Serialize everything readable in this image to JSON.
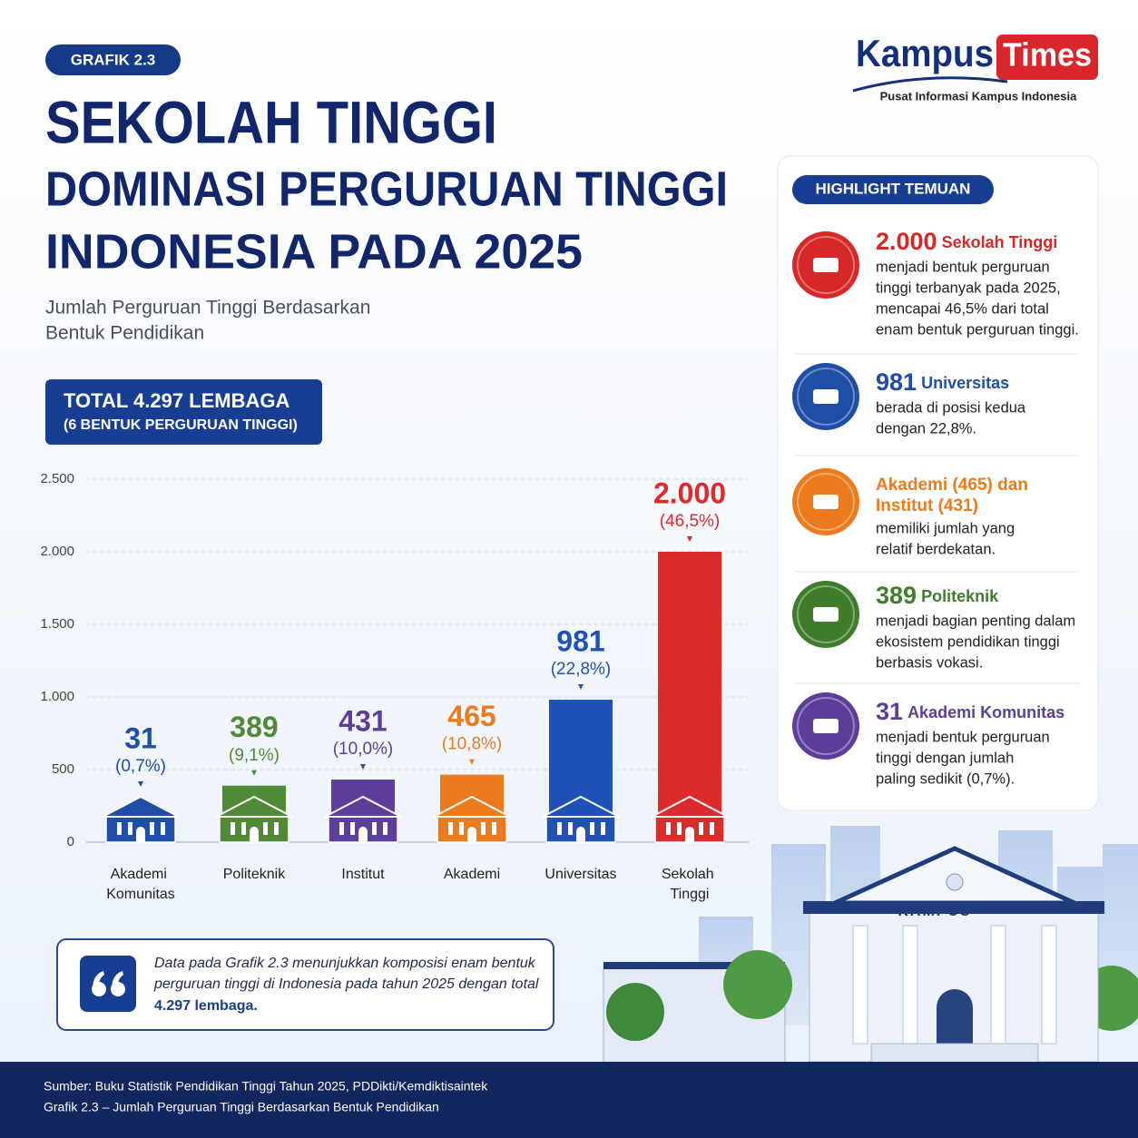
{
  "badge": "GRAFIK 2.3",
  "brand": {
    "name": "Kampus",
    "name_highlight": "Times",
    "tagline": "Pusat Informasi Kampus Indonesia"
  },
  "title_lines": [
    "SEKOLAH TINGGI",
    "DOMINASI PERGURUAN TINGGI",
    "INDONESIA PADA 2025"
  ],
  "chart_data": {
    "type": "bar",
    "subtitle": [
      "Jumlah Perguruan Tinggi Berdasarkan",
      "Bentuk Pendidikan"
    ],
    "total": [
      "TOTAL 4.297 LEMBAGA",
      "(6 BENTUK PERGURUAN TINGGI)"
    ],
    "categories": [
      "Akademi Komunitas",
      "Politeknik",
      "Institut",
      "Akademi",
      "Universitas",
      "Sekolah Tinggi"
    ],
    "values": [
      31,
      389,
      431,
      465,
      981,
      2000
    ],
    "value_labels": [
      "31",
      "389",
      "431",
      "465",
      "981",
      "2.000"
    ],
    "percent_labels": [
      "(0,7%)",
      "(9,1%)",
      "(10,0%)",
      "(10,8%)",
      "(22,8%)",
      "(46,5%)"
    ],
    "colors": [
      "#1f4ea6",
      "#4f8a36",
      "#5d3f9b",
      "#ec7b1d",
      "#2052b5",
      "#dc2b2b"
    ],
    "ylim": [
      0,
      2500
    ],
    "yticks": [
      0,
      500,
      {
        "value": 1000,
        "label": "1.000"
      },
      {
        "value": 1500,
        "label": "1.500"
      },
      {
        "value": 2000,
        "label": "2.000"
      },
      {
        "value": 2500,
        "label": "2.500"
      }
    ],
    "grid": true
  },
  "highlights": {
    "title": "HIGHLIGHT TEMUAN",
    "items": [
      {
        "number": "2.000",
        "label": "Sekolah Tinggi",
        "color": "#d62828",
        "lines": [
          "menjadi bentuk perguruan",
          "tinggi terbanyak pada 2025,",
          "mencapai 46,5% dari total",
          "enam bentuk perguruan tinggi."
        ]
      },
      {
        "number": "981",
        "label": "Universitas",
        "color": "#1f4ea6",
        "lines": [
          "berada di posisi kedua",
          "dengan 22,8%."
        ]
      },
      {
        "heading": [
          "Akademi (465) dan",
          "Institut (431)"
        ],
        "color": "#ec7b1d",
        "lines": [
          "memiliki jumlah yang",
          "relatif berdekatan."
        ]
      },
      {
        "number": "389",
        "label": "Politeknik",
        "color": "#3f7d2c",
        "lines": [
          "menjadi bagian penting dalam",
          "ekosistem pendidikan tinggi",
          "berbasis vokasi."
        ]
      },
      {
        "number": "31",
        "label": "Akademi Komunitas",
        "color": "#5d3f9b",
        "lines": [
          "menjadi bentuk perguruan",
          "tinggi dengan jumlah",
          "paling sedikit (0,7%)."
        ]
      }
    ]
  },
  "quote": {
    "lines": [
      "Data pada Grafik 2.3 menunjukkan komposisi enam bentuk",
      "perguruan tinggi di Indonesia pada tahun 2025 dengan total"
    ],
    "emphasis": "4.297 lembaga."
  },
  "illustration_label": "KAMPUS",
  "source": [
    "Sumber: Buku Statistik Pendidikan Tinggi Tahun 2025, PDDikti/Kemdiktisaintek",
    "Grafik 2.3 – Jumlah Perguruan Tinggi Berdasarkan Bentuk Pendidikan"
  ]
}
